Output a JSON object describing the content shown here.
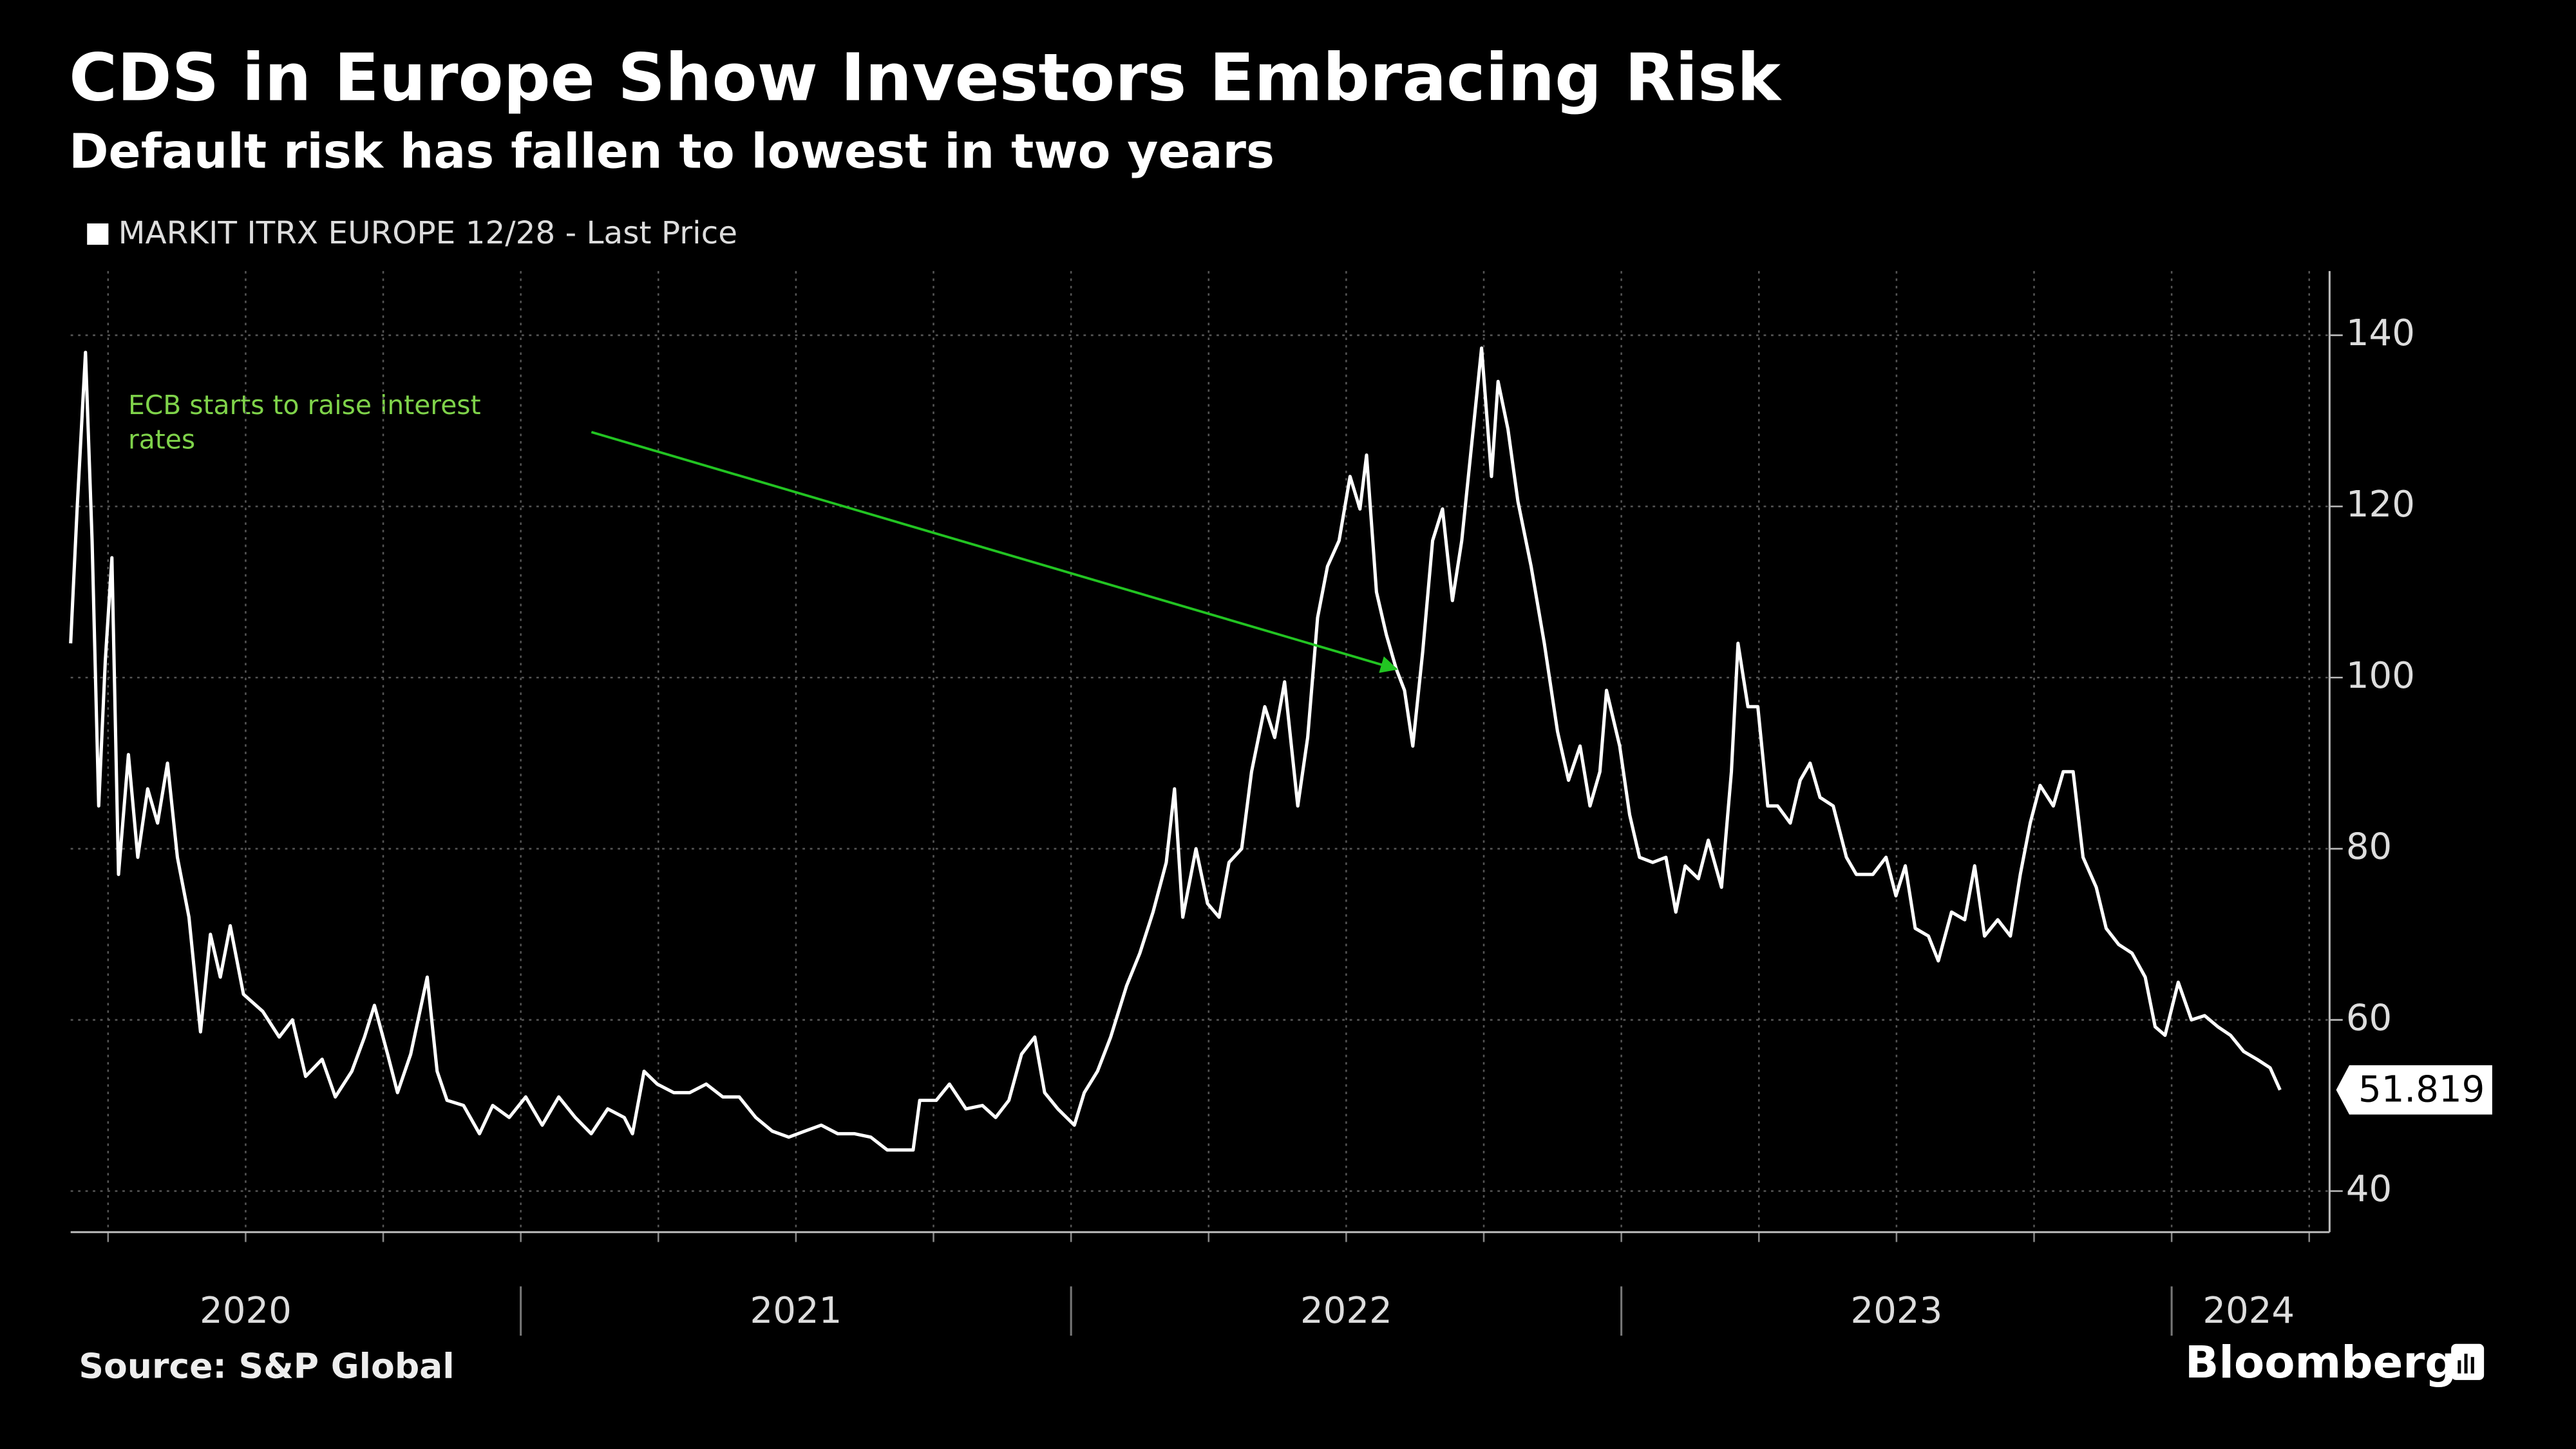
{
  "chart_data": {
    "type": "line",
    "title": "CDS in Europe Show Investors Embracing Risk",
    "subtitle": "Default risk has fallen to lowest in two years",
    "source": "Source: S&P Global",
    "brand": "Bloomberg",
    "x": [
      2020.182,
      2020.194,
      2020.209,
      2020.221,
      2020.233,
      2020.245,
      2020.257,
      2020.269,
      2020.287,
      2020.304,
      2020.322,
      2020.34,
      2020.358,
      2020.376,
      2020.397,
      2020.418,
      2020.436,
      2020.454,
      2020.472,
      2020.496,
      2020.531,
      2020.561,
      2020.585,
      2020.609,
      2020.639,
      2020.663,
      2020.693,
      2020.716,
      2020.734,
      2020.758,
      2020.776,
      2020.8,
      2020.83,
      2020.848,
      2020.866,
      2020.896,
      2020.925,
      2020.949,
      2020.979,
      2021.009,
      2021.039,
      2021.069,
      2021.099,
      2021.128,
      2021.158,
      2021.188,
      2021.203,
      2021.224,
      2021.248,
      2021.278,
      2021.307,
      2021.337,
      2021.367,
      2021.397,
      2021.427,
      2021.457,
      2021.487,
      2021.516,
      2021.546,
      2021.576,
      2021.606,
      2021.636,
      2021.666,
      2021.713,
      2021.725,
      2021.755,
      2021.779,
      2021.809,
      2021.839,
      2021.863,
      2021.887,
      2021.91,
      2021.934,
      2021.952,
      2021.976,
      2022.006,
      2022.024,
      2022.048,
      2022.072,
      2022.101,
      2022.125,
      2022.149,
      2022.173,
      2022.188,
      2022.203,
      2022.227,
      2022.248,
      2022.269,
      2022.287,
      2022.31,
      2022.328,
      2022.352,
      2022.37,
      2022.388,
      2022.412,
      2022.43,
      2022.448,
      2022.466,
      2022.487,
      2022.507,
      2022.525,
      2022.537,
      2022.555,
      2022.573,
      2022.591,
      2022.606,
      2022.621,
      2022.639,
      2022.657,
      2022.675,
      2022.693,
      2022.71,
      2022.734,
      2022.746,
      2022.764,
      2022.776,
      2022.794,
      2022.812,
      2022.836,
      2022.86,
      2022.884,
      2022.904,
      2022.925,
      2022.943,
      2022.961,
      2022.973,
      2022.997,
      2023.015,
      2023.033,
      2023.057,
      2023.081,
      2023.099,
      2023.116,
      2023.14,
      2023.158,
      2023.182,
      2023.2,
      2023.212,
      2023.23,
      2023.248,
      2023.266,
      2023.284,
      2023.307,
      2023.325,
      2023.343,
      2023.361,
      2023.385,
      2023.409,
      2023.427,
      2023.457,
      2023.481,
      2023.499,
      2023.516,
      2023.534,
      2023.558,
      2023.576,
      2023.6,
      2023.624,
      2023.642,
      2023.66,
      2023.684,
      2023.707,
      2023.725,
      2023.743,
      2023.761,
      2023.785,
      2023.803,
      2023.821,
      2023.839,
      2023.863,
      2023.881,
      2023.904,
      2023.928,
      2023.952,
      2023.97,
      2023.988,
      2024.012,
      2024.036,
      2024.06,
      2024.084,
      2024.107,
      2024.131,
      2024.155,
      2024.179,
      2024.197
    ],
    "series": [
      {
        "name": "MARKIT ITRX EUROPE 12/28 - Last Price",
        "color": "#ffffff",
        "values": [
          104,
          120,
          138,
          116,
          85,
          102,
          114,
          77,
          91,
          79,
          87,
          83,
          90,
          79,
          72,
          58.6,
          70,
          65,
          71,
          63,
          61,
          58,
          60,
          53.4,
          55.4,
          51,
          54,
          58,
          61.7,
          56,
          51.5,
          56,
          65,
          54,
          50.6,
          50,
          46.7,
          50,
          48.6,
          51,
          47.7,
          51,
          48.6,
          46.7,
          49.6,
          48.6,
          46.7,
          54,
          52.5,
          51.5,
          51.5,
          52.5,
          51,
          51,
          48.6,
          47,
          46.3,
          47,
          47.7,
          46.7,
          46.7,
          46.3,
          44.8,
          44.8,
          50.6,
          50.6,
          52.5,
          49.6,
          50,
          48.6,
          50.6,
          56,
          58,
          51.5,
          49.6,
          47.7,
          51.5,
          54,
          58,
          64,
          67.8,
          72.6,
          78.4,
          87,
          72,
          80,
          73.6,
          72,
          78.4,
          80,
          89,
          96.6,
          93,
          99.5,
          85,
          93,
          107,
          113,
          116,
          123.5,
          119.7,
          126,
          110,
          105,
          101,
          98.5,
          92,
          103,
          116,
          119.7,
          109,
          116,
          131,
          138.5,
          123.5,
          134.6,
          129,
          120.6,
          113,
          104,
          93.7,
          88,
          92,
          85,
          89,
          98.5,
          92,
          84,
          79,
          78.4,
          79,
          72.6,
          78,
          76.5,
          81,
          75.5,
          89,
          104,
          96.6,
          96.6,
          85,
          85,
          83,
          88,
          90,
          86,
          85,
          79,
          77,
          77,
          79,
          74.5,
          78,
          70.7,
          69.8,
          66.9,
          72.6,
          71.7,
          78,
          69.8,
          71.7,
          69.8,
          77,
          83,
          87.4,
          85,
          89,
          89,
          79,
          75.5,
          70.7,
          68.8,
          67.8,
          65,
          59.2,
          58.2,
          64.4,
          60,
          60.5,
          59.2,
          58.2,
          56.3,
          55.4,
          54.4,
          51.819
        ]
      }
    ],
    "last_value_label": "51.819",
    "annotation": {
      "text": "ECB starts to raise interest rates",
      "x": 2022.591,
      "y": 101,
      "color": "#7fd34a"
    },
    "xlim": [
      2020.182,
      2024.287
    ],
    "xticks": [
      {
        "value": 2020.5,
        "label": "2020"
      },
      {
        "value": 2021.5,
        "label": "2021"
      },
      {
        "value": 2022.5,
        "label": "2022"
      },
      {
        "value": 2023.5,
        "label": "2023"
      },
      {
        "value": 2024.14,
        "label": "2024"
      }
    ],
    "year_boundaries": [
      2021,
      2022,
      2023,
      2024
    ],
    "xgrid": [
      2020.25,
      2020.5,
      2020.75,
      2021,
      2021.25,
      2021.5,
      2021.75,
      2022,
      2022.25,
      2022.5,
      2022.75,
      2023,
      2023.25,
      2023.5,
      2023.75,
      2024,
      2024.25
    ],
    "ylim": [
      35.2,
      147.5
    ],
    "yticks": [
      40,
      60,
      80,
      100,
      120,
      140
    ],
    "grid": true,
    "y_axis_side": "right"
  }
}
